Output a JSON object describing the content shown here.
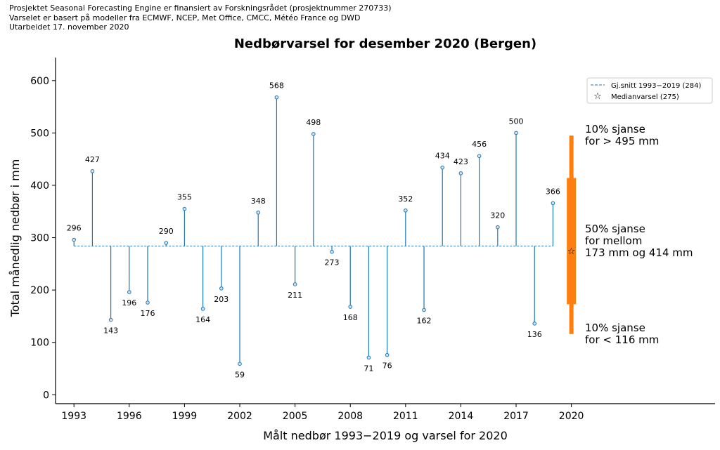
{
  "header_lines": [
    "Prosjektet Seasonal Forecasting Engine er finansiert av Forskningsrådet (prosjektnummer 270733)",
    "Varselet er basert på modeller fra ECMWF, NCEP, Met Office, CMCC, Météo France og DWD",
    "Utarbeidet 17. november 2020"
  ],
  "chart_data": {
    "type": "stem",
    "title": "Nedbørvarsel for desember 2020 (Bergen)",
    "xlabel": "Målt nedbør 1993−2019 og varsel for 2020",
    "ylabel": "Total månedlig nedbør i mm",
    "xlim": [
      1992,
      2027.8
    ],
    "ylim": [
      -17,
      644
    ],
    "xticks": [
      1993,
      1996,
      1999,
      2002,
      2005,
      2008,
      2011,
      2014,
      2017,
      2020
    ],
    "yticks": [
      0,
      100,
      200,
      300,
      400,
      500,
      600
    ],
    "x": [
      1993,
      1994,
      1995,
      1996,
      1997,
      1998,
      1999,
      2000,
      2001,
      2002,
      2003,
      2004,
      2005,
      2006,
      2007,
      2008,
      2009,
      2010,
      2011,
      2012,
      2013,
      2014,
      2015,
      2016,
      2017,
      2018,
      2019
    ],
    "values": [
      296,
      427,
      143,
      196,
      176,
      290,
      355,
      164,
      203,
      59,
      348,
      568,
      211,
      498,
      273,
      168,
      71,
      76,
      352,
      162,
      434,
      423,
      456,
      320,
      500,
      136,
      366
    ],
    "mean": 284,
    "forecast": {
      "year": 2020,
      "p10": 116,
      "p25": 173,
      "median": 275,
      "p75": 414,
      "p90": 495
    },
    "legend": {
      "placement": "top-right",
      "mean_label": "Gj.snitt 1993−2019 (284)",
      "median_label": "Medianvarsel (275)"
    },
    "annotations": {
      "upper": [
        "10% sjanse",
        "for > 495 mm"
      ],
      "middle": [
        "50% sjanse",
        "for mellom",
        "173 mm og 414 mm"
      ],
      "lower": [
        "10% sjanse",
        "for < 116 mm"
      ]
    },
    "colors": {
      "stem": "#1f77b4",
      "mean": "#4a90c8",
      "forecast": "#ff7f0e"
    }
  }
}
